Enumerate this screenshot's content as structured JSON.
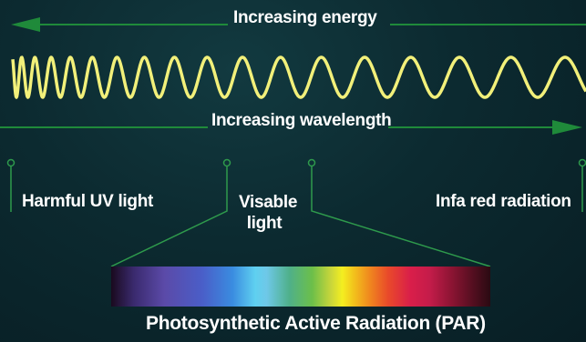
{
  "labels": {
    "energy": "Increasing energy",
    "wavelength": "Increasing wavelength",
    "uv": "Harmful UV light",
    "visible": "Visable light",
    "ir": "Infa red radiation",
    "par": "Photosynthetic Active Radiation (PAR)"
  },
  "colors": {
    "arrow": "#1f8a3a",
    "wave": "#f2f07a",
    "connector": "#2e9a4c"
  }
}
